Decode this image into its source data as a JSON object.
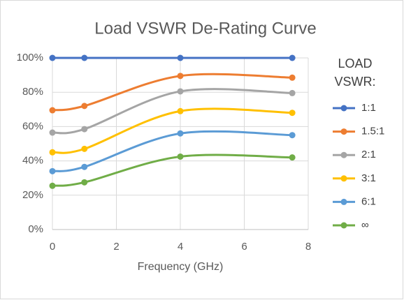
{
  "chart_data": {
    "type": "line",
    "title": "Load VSWR De-Rating Curve",
    "xlabel": "Frequency (GHz)",
    "legend_title": [
      "LOAD",
      "VSWR:"
    ],
    "legend": "right",
    "grid": true,
    "smooth": true,
    "x": [
      0,
      1,
      4,
      7.5
    ],
    "xlim": [
      0,
      8
    ],
    "xticks": [
      0,
      2,
      4,
      6,
      8
    ],
    "ylim": [
      0,
      100
    ],
    "yticks": [
      {
        "value": 0,
        "label": "0%"
      },
      {
        "value": 20,
        "label": "20%"
      },
      {
        "value": 40,
        "label": "40%"
      },
      {
        "value": 60,
        "label": "60%"
      },
      {
        "value": 80,
        "label": "80%"
      },
      {
        "value": 100,
        "label": "100%"
      }
    ],
    "series": [
      {
        "name": "1:1",
        "color": "#4472c4",
        "values": [
          100,
          100,
          100,
          100
        ]
      },
      {
        "name": "1.5:1",
        "color": "#ed7d31",
        "values": [
          69.5,
          72,
          89.5,
          88.5
        ]
      },
      {
        "name": "2:1",
        "color": "#a5a5a5",
        "values": [
          56.5,
          58.5,
          80.5,
          79.5
        ]
      },
      {
        "name": "3:1",
        "color": "#ffc000",
        "values": [
          45,
          47,
          69,
          68
        ]
      },
      {
        "name": "6:1",
        "color": "#5b9bd5",
        "values": [
          34,
          36.5,
          56,
          55
        ]
      },
      {
        "name": "∞",
        "color": "#70ad47",
        "values": [
          25.5,
          27.5,
          42.5,
          42
        ]
      }
    ]
  }
}
